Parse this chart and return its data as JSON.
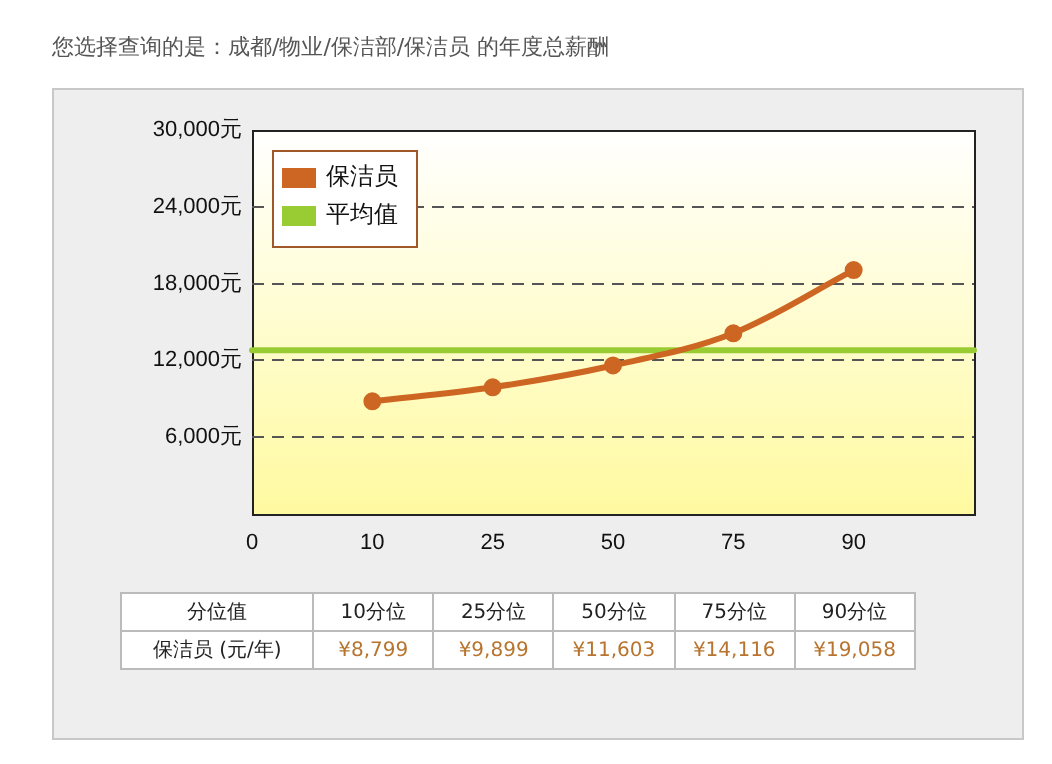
{
  "chart_data": {
    "type": "line",
    "title": "您选择查询的是：成都/物业/保洁部/保洁员 的年度总薪酬",
    "categories": [
      "0",
      "10",
      "25",
      "50",
      "75",
      "90",
      null
    ],
    "series": [
      {
        "name": "保洁员",
        "color": "#cc6622",
        "marker": "circle",
        "values": [
          null,
          8799,
          9899,
          11603,
          14116,
          19058,
          null
        ],
        "value_labels": [
          null,
          "¥8,799",
          "¥9,899",
          "¥11,603",
          "¥14,116",
          "¥19,058",
          null
        ]
      },
      {
        "name": "平均值",
        "color": "#99cc33",
        "marker": "none",
        "values": [
          12800,
          12800,
          12800,
          12800,
          12800,
          12800,
          12800
        ]
      }
    ],
    "ylim": [
      0,
      30000
    ],
    "yticks": [
      {
        "value": 0,
        "label": null
      },
      {
        "value": 6000,
        "label": "6,000元"
      },
      {
        "value": 12000,
        "label": "12,000元"
      },
      {
        "value": 18000,
        "label": "18,000元"
      },
      {
        "value": 24000,
        "label": "24,000元"
      },
      {
        "value": 30000,
        "label": "30,000元"
      }
    ],
    "grid": "y",
    "legend": "top left",
    "line_style": "solid",
    "annotations": [
      "分位值",
      "10分位",
      "25分位",
      "50分位",
      "75分位",
      "90分位",
      "保洁员 (元/年)"
    ]
  }
}
